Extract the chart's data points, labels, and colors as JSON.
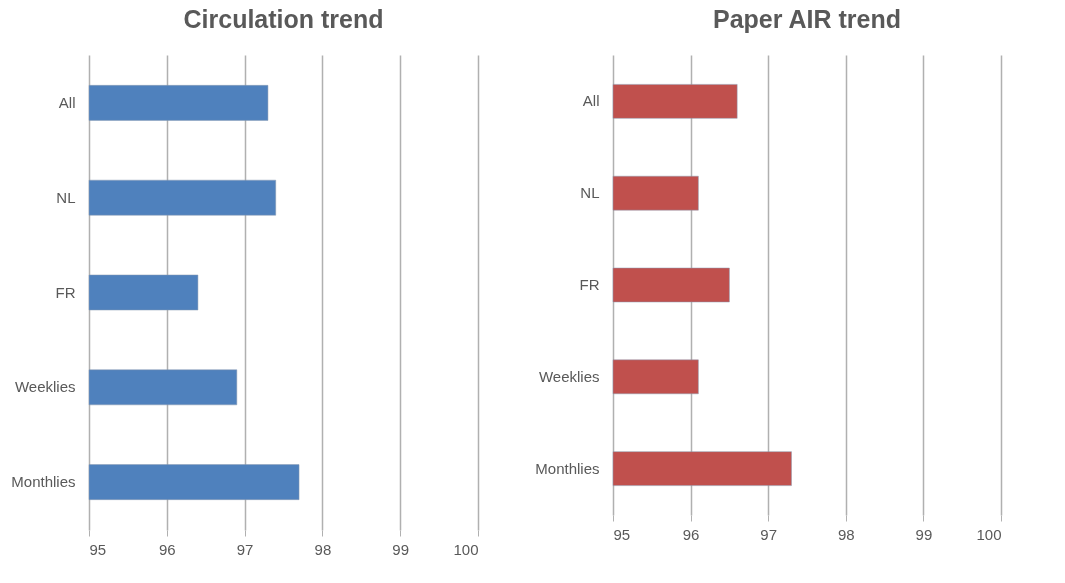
{
  "chart_data": [
    {
      "type": "bar",
      "title": "Circulation trend",
      "orientation": "horizontal",
      "categories": [
        "All",
        "NL",
        "FR",
        "Weeklies",
        "Monthlies"
      ],
      "values": [
        97.3,
        97.4,
        96.4,
        96.9,
        97.7
      ],
      "color": "#4f81bd",
      "xlim": [
        95,
        100
      ],
      "xticks": [
        95,
        96,
        97,
        98,
        99,
        100
      ],
      "grid": "x"
    },
    {
      "type": "bar",
      "title": "Paper AIR trend",
      "orientation": "horizontal",
      "categories": [
        "All",
        "NL",
        "FR",
        "Weeklies",
        "Monthlies"
      ],
      "values": [
        96.6,
        96.1,
        96.5,
        96.1,
        97.3
      ],
      "color": "#c0504d",
      "xlim": [
        95,
        100
      ],
      "xticks": [
        95,
        96,
        97,
        98,
        99,
        100
      ],
      "grid": "x"
    }
  ]
}
